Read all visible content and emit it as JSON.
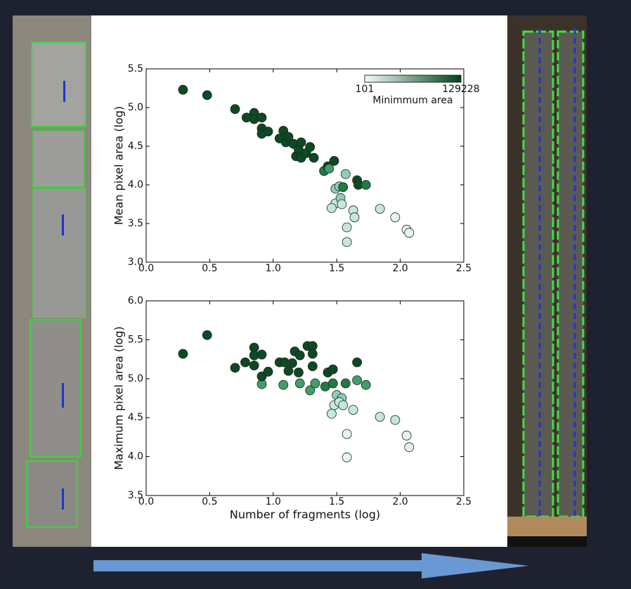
{
  "chart_data": [
    {
      "type": "scatter",
      "ylabel": "Mean pixel area (log)",
      "x": [
        0.29,
        0.48,
        0.7,
        0.79,
        0.85,
        0.85,
        0.91,
        0.91,
        0.91,
        0.96,
        1.05,
        1.08,
        1.1,
        1.12,
        1.16,
        1.18,
        1.2,
        1.22,
        1.22,
        1.26,
        1.29,
        1.32,
        1.4,
        1.43,
        1.48,
        1.44,
        1.57,
        1.49,
        1.52,
        1.55,
        1.66,
        1.67,
        1.73,
        1.49,
        1.53,
        1.54,
        1.46,
        1.63,
        1.64,
        1.84,
        1.96,
        1.58,
        1.58,
        2.05,
        2.07
      ],
      "y": [
        5.23,
        5.16,
        4.98,
        4.87,
        4.93,
        4.85,
        4.87,
        4.73,
        4.66,
        4.69,
        4.6,
        4.7,
        4.55,
        4.62,
        4.53,
        4.37,
        4.46,
        4.55,
        4.35,
        4.41,
        4.49,
        4.35,
        4.18,
        4.24,
        4.31,
        4.21,
        4.14,
        3.95,
        3.98,
        3.97,
        4.06,
        4.0,
        4.0,
        3.76,
        3.83,
        3.75,
        3.7,
        3.67,
        3.58,
        3.69,
        3.58,
        3.45,
        3.26,
        3.42,
        3.38
      ],
      "colors": [
        "#0d4a23",
        "#0d4a23",
        "#0d4a23",
        "#0d4a23",
        "#0d4a23",
        "#0d4a23",
        "#0d4a23",
        "#0d4a23",
        "#0d4a23",
        "#0d4a23",
        "#0d4a23",
        "#0d4a23",
        "#0d4a23",
        "#0d4a23",
        "#0d4a23",
        "#0d4a23",
        "#0d4a23",
        "#0d4a23",
        "#0d4a23",
        "#0d4a23",
        "#0d4a23",
        "#0d4a23",
        "#1f7a45",
        "#0d4a23",
        "#0d4a23",
        "#3f9e6a",
        "#8fcfb4",
        "#8fcfb4",
        "#8fcfb4",
        "#1f7a45",
        "#0d4a23",
        "#0d4a23",
        "#1f7a45",
        "#c4e8da",
        "#8fcfb4",
        "#c4e8da",
        "#c4e8da",
        "#c4e8da",
        "#c4e8da",
        "#c4e8da",
        "#e6f5f0",
        "#c4e8da",
        "#c4e8da",
        "#e6f5f0",
        "#e6f5f0"
      ],
      "xlim": [
        0,
        2.5
      ],
      "ylim": [
        3.0,
        5.5
      ],
      "xticks": [
        {
          "value": 0,
          "label": "0.0"
        },
        0.5,
        {
          "value": 1,
          "label": "1.0"
        },
        1.5,
        {
          "value": 2,
          "label": "2.0"
        },
        2.5
      ],
      "yticks": [
        {
          "value": 3,
          "label": "3.0"
        },
        3.5,
        {
          "value": 4,
          "label": "4.0"
        },
        4.5,
        {
          "value": 5,
          "label": "5.0"
        },
        5.5
      ],
      "colorbar": {
        "label": "Minimmum area",
        "min": 101,
        "max": 129228,
        "colors": [
          "#f4fbf8",
          "#00441b"
        ]
      }
    },
    {
      "type": "scatter",
      "ylabel": "Maximum pixel area (log)",
      "xlabel": "Number of fragments (log)",
      "x": [
        0.29,
        0.48,
        0.7,
        0.78,
        0.85,
        0.85,
        0.85,
        0.91,
        0.91,
        0.91,
        0.96,
        1.05,
        1.09,
        1.08,
        1.12,
        1.15,
        1.17,
        1.2,
        1.21,
        1.21,
        1.27,
        1.31,
        1.31,
        1.31,
        1.29,
        1.33,
        1.41,
        1.43,
        1.47,
        1.47,
        1.5,
        1.54,
        1.48,
        1.52,
        1.55,
        1.57,
        1.46,
        1.63,
        1.66,
        1.66,
        1.73,
        1.84,
        1.96,
        1.58,
        1.58,
        2.05,
        2.07
      ],
      "y": [
        5.32,
        5.56,
        5.14,
        5.21,
        5.4,
        5.3,
        5.17,
        5.31,
        4.93,
        5.03,
        5.09,
        5.21,
        5.21,
        4.92,
        5.1,
        5.2,
        5.35,
        5.08,
        4.94,
        5.3,
        5.42,
        5.42,
        5.32,
        5.16,
        4.85,
        4.94,
        4.9,
        5.08,
        5.12,
        4.94,
        4.79,
        4.75,
        4.66,
        4.7,
        4.66,
        4.94,
        4.55,
        4.6,
        5.21,
        4.98,
        4.92,
        4.51,
        4.47,
        4.29,
        3.99,
        4.27,
        4.12
      ],
      "colors": [
        "#0d4a23",
        "#0d4a23",
        "#0d4a23",
        "#0d4a23",
        "#0d4a23",
        "#0d4a23",
        "#0d4a23",
        "#0d4a23",
        "#3f9e6a",
        "#0d4a23",
        "#0d4a23",
        "#0d4a23",
        "#0d4a23",
        "#3f9e6a",
        "#0d4a23",
        "#0d4a23",
        "#0d4a23",
        "#0d4a23",
        "#3f9e6a",
        "#0d4a23",
        "#0d4a23",
        "#0d4a23",
        "#0d4a23",
        "#0d4a23",
        "#3f9e6a",
        "#3f9e6a",
        "#1f7a45",
        "#0d4a23",
        "#0d4a23",
        "#1f7a45",
        "#8fcfb4",
        "#8fcfb4",
        "#c4e8da",
        "#c4e8da",
        "#c4e8da",
        "#1f7a45",
        "#c4e8da",
        "#c4e8da",
        "#0d4a23",
        "#3f9e6a",
        "#3f9e6a",
        "#c4e8da",
        "#c4e8da",
        "#e6f5f0",
        "#e6f5f0",
        "#e6f5f0",
        "#e6f5f0"
      ],
      "xlim": [
        0,
        2.5
      ],
      "ylim": [
        3.5,
        6.0
      ],
      "xticks": [
        {
          "value": 0,
          "label": "0.0"
        },
        0.5,
        {
          "value": 1,
          "label": "1.0"
        },
        1.5,
        {
          "value": 2,
          "label": "2.0"
        },
        2.5
      ],
      "yticks": [
        3.5,
        {
          "value": 4,
          "label": "4.0"
        },
        4.5,
        {
          "value": 5,
          "label": "5.0"
        },
        5.5,
        {
          "value": 6,
          "label": "6.0"
        }
      ]
    }
  ]
}
